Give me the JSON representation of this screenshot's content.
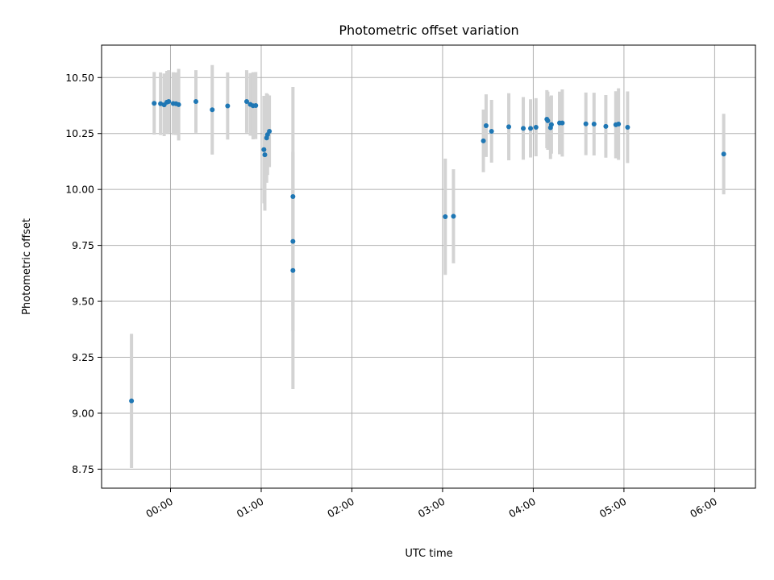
{
  "chart_data": {
    "type": "scatter",
    "title": "Photometric offset variation",
    "xlabel": "UTC time",
    "ylabel": "Photometric offset",
    "x_tick_labels": [
      "00:00",
      "01:00",
      "02:00",
      "03:00",
      "04:00",
      "05:00",
      "06:00"
    ],
    "x_tick_hours": [
      0,
      1,
      2,
      3,
      4,
      5,
      6
    ],
    "y_tick_labels": [
      "8.75",
      "9.00",
      "9.25",
      "9.50",
      "9.75",
      "10.00",
      "10.25",
      "10.50"
    ],
    "y_tick_values": [
      8.75,
      9.0,
      9.25,
      9.5,
      9.75,
      10.0,
      10.25,
      10.5
    ],
    "xlim_hours": [
      -0.76,
      6.45
    ],
    "ylim": [
      8.665,
      10.645
    ],
    "grid": true,
    "marker_color": "#1f77b4",
    "errorbar_color": "#d3d3d3",
    "points": [
      {
        "t_hours": -0.43,
        "y": 9.055,
        "yerr": 0.3
      },
      {
        "t_hours": -0.18,
        "y": 10.385,
        "yerr": 0.14
      },
      {
        "t_hours": -0.11,
        "y": 10.383,
        "yerr": 0.14
      },
      {
        "t_hours": -0.07,
        "y": 10.378,
        "yerr": 0.14
      },
      {
        "t_hours": -0.04,
        "y": 10.39,
        "yerr": 0.14
      },
      {
        "t_hours": -0.02,
        "y": 10.393,
        "yerr": 0.14
      },
      {
        "t_hours": 0.03,
        "y": 10.384,
        "yerr": 0.14
      },
      {
        "t_hours": 0.06,
        "y": 10.383,
        "yerr": 0.14
      },
      {
        "t_hours": 0.09,
        "y": 10.379,
        "yerr": 0.16
      },
      {
        "t_hours": 0.28,
        "y": 10.393,
        "yerr": 0.14
      },
      {
        "t_hours": 0.46,
        "y": 10.356,
        "yerr": 0.2
      },
      {
        "t_hours": 0.63,
        "y": 10.373,
        "yerr": 0.15
      },
      {
        "t_hours": 0.84,
        "y": 10.393,
        "yerr": 0.14
      },
      {
        "t_hours": 0.88,
        "y": 10.38,
        "yerr": 0.14
      },
      {
        "t_hours": 0.91,
        "y": 10.374,
        "yerr": 0.15
      },
      {
        "t_hours": 0.94,
        "y": 10.375,
        "yerr": 0.15
      },
      {
        "t_hours": 1.03,
        "y": 10.178,
        "yerr": 0.24
      },
      {
        "t_hours": 1.04,
        "y": 10.155,
        "yerr": 0.25
      },
      {
        "t_hours": 1.06,
        "y": 10.23,
        "yerr": 0.2
      },
      {
        "t_hours": 1.07,
        "y": 10.245,
        "yerr": 0.18
      },
      {
        "t_hours": 1.09,
        "y": 10.26,
        "yerr": 0.16
      },
      {
        "t_hours": 1.35,
        "y": 9.968,
        "yerr": 0.49
      },
      {
        "t_hours": 1.35,
        "y": 9.768,
        "yerr": 0.4
      },
      {
        "t_hours": 1.35,
        "y": 9.638,
        "yerr": 0.53
      },
      {
        "t_hours": 3.03,
        "y": 9.878,
        "yerr": 0.26
      },
      {
        "t_hours": 3.12,
        "y": 9.88,
        "yerr": 0.21
      },
      {
        "t_hours": 3.45,
        "y": 10.217,
        "yerr": 0.14
      },
      {
        "t_hours": 3.48,
        "y": 10.285,
        "yerr": 0.14
      },
      {
        "t_hours": 3.54,
        "y": 10.26,
        "yerr": 0.14
      },
      {
        "t_hours": 3.73,
        "y": 10.28,
        "yerr": 0.15
      },
      {
        "t_hours": 3.89,
        "y": 10.273,
        "yerr": 0.14
      },
      {
        "t_hours": 3.97,
        "y": 10.273,
        "yerr": 0.13
      },
      {
        "t_hours": 4.03,
        "y": 10.278,
        "yerr": 0.13
      },
      {
        "t_hours": 4.15,
        "y": 10.314,
        "yerr": 0.13
      },
      {
        "t_hours": 4.16,
        "y": 10.307,
        "yerr": 0.13
      },
      {
        "t_hours": 4.19,
        "y": 10.276,
        "yerr": 0.14
      },
      {
        "t_hours": 4.2,
        "y": 10.29,
        "yerr": 0.13
      },
      {
        "t_hours": 4.29,
        "y": 10.297,
        "yerr": 0.14
      },
      {
        "t_hours": 4.32,
        "y": 10.297,
        "yerr": 0.15
      },
      {
        "t_hours": 4.58,
        "y": 10.293,
        "yerr": 0.14
      },
      {
        "t_hours": 4.67,
        "y": 10.292,
        "yerr": 0.14
      },
      {
        "t_hours": 4.8,
        "y": 10.282,
        "yerr": 0.14
      },
      {
        "t_hours": 4.91,
        "y": 10.289,
        "yerr": 0.15
      },
      {
        "t_hours": 4.94,
        "y": 10.292,
        "yerr": 0.16
      },
      {
        "t_hours": 5.04,
        "y": 10.278,
        "yerr": 0.16
      },
      {
        "t_hours": 6.1,
        "y": 10.158,
        "yerr": 0.18
      }
    ]
  }
}
